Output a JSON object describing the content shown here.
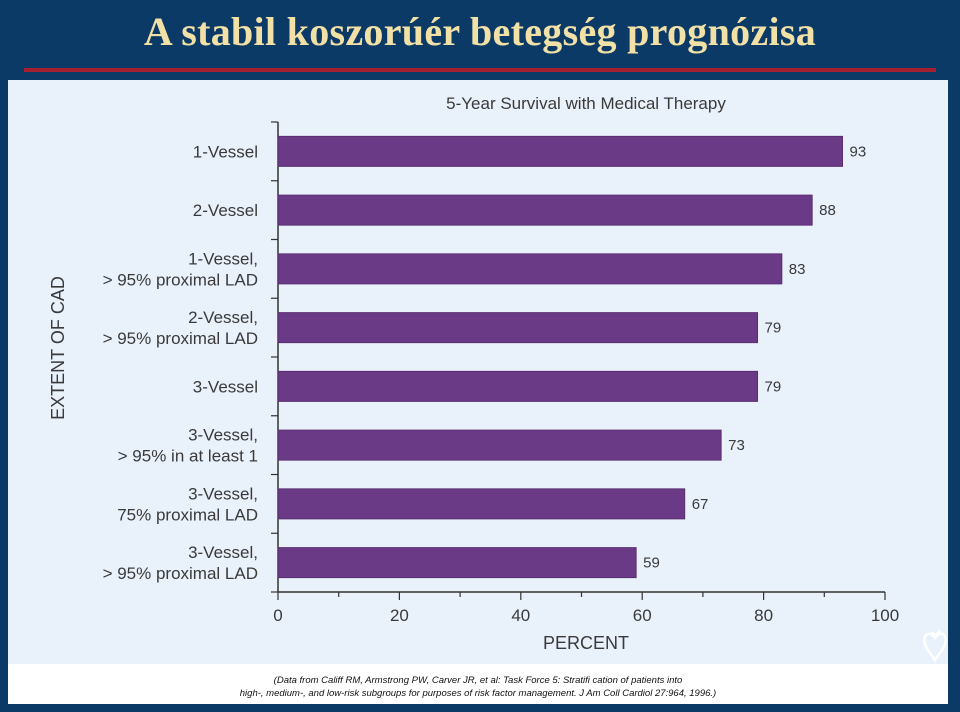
{
  "slide": {
    "title": "A stabil koszorúér betegség prognózisa",
    "source_line_1": "(Data from Califf RM, Armstrong PW, Carver JR, et al: Task Force 5: Stratifi cation of patients into",
    "source_line_2": "high-, medium-, and low-risk subgroups for purposes of risk factor management. J Am Coll Cardiol 27:964, 1996.)",
    "logo_icon": "heart-logo-icon"
  },
  "colors": {
    "bar": "#6b3a86",
    "bar_outline": "#5a2f72",
    "background": "#0c3a66",
    "panel": "#e9f1fb",
    "title": "#f2e1a6",
    "title_rule": "#a32030"
  },
  "chart_data": {
    "type": "bar",
    "orientation": "horizontal",
    "title": "5-Year Survival with Medical Therapy",
    "xlabel": "PERCENT",
    "ylabel": "EXTENT OF CAD",
    "xlim": [
      0,
      100
    ],
    "xticks": [
      0,
      20,
      40,
      60,
      80,
      100
    ],
    "grid": false,
    "categories": [
      [
        "1-Vessel"
      ],
      [
        "2-Vessel"
      ],
      [
        "1-Vessel,",
        "> 95% proximal LAD"
      ],
      [
        "2-Vessel,",
        "> 95% proximal LAD"
      ],
      [
        "3-Vessel"
      ],
      [
        "3-Vessel,",
        "> 95% in at least 1"
      ],
      [
        "3-Vessel,",
        "75% proximal LAD"
      ],
      [
        "3-Vessel,",
        "> 95% proximal LAD"
      ]
    ],
    "values": [
      93,
      88,
      83,
      79,
      79,
      73,
      67,
      59
    ]
  }
}
